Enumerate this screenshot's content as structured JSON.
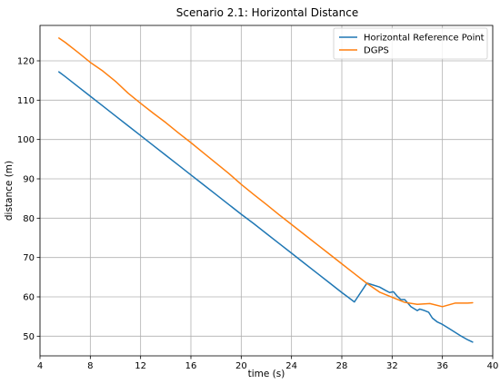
{
  "chart_data": {
    "type": "line",
    "title": "Scenario 2.1: Horizontal Distance",
    "xlabel": "time (s)",
    "ylabel": "distance (m)",
    "xlim": [
      4,
      40
    ],
    "ylim": [
      45,
      129
    ],
    "xticks": [
      4,
      8,
      12,
      16,
      20,
      24,
      28,
      32,
      36,
      40
    ],
    "yticks": [
      50,
      60,
      70,
      80,
      90,
      100,
      110,
      120
    ],
    "grid": true,
    "legend_position": "upper right",
    "series": [
      {
        "name": "Horizontal Reference Point",
        "color": "#1f77b4",
        "x": [
          5.5,
          6,
          7,
          8,
          9,
          10,
          11,
          12,
          13,
          14,
          15,
          16,
          17,
          18,
          19,
          20,
          21,
          22,
          23,
          24,
          25,
          26,
          27,
          28,
          29,
          30,
          30.5,
          31,
          31.5,
          31.8,
          32.1,
          32.4,
          32.7,
          33,
          33.5,
          34,
          34.2,
          34.5,
          34.9,
          35.2,
          35.6,
          36,
          36.5,
          37,
          37.5,
          38,
          38.4
        ],
        "y": [
          117.2,
          116.0,
          113.5,
          111.0,
          108.5,
          106.0,
          103.5,
          101.0,
          98.5,
          96.0,
          93.5,
          91.0,
          88.5,
          86.0,
          83.5,
          81.0,
          78.6,
          76.1,
          73.6,
          71.1,
          68.6,
          66.1,
          63.6,
          61.1,
          58.7,
          63.5,
          63.0,
          62.5,
          61.6,
          61.1,
          61.3,
          60.2,
          59.3,
          59.3,
          57.5,
          56.5,
          56.9,
          56.6,
          56.1,
          54.6,
          53.6,
          53.0,
          52.0,
          51.0,
          50.0,
          49.1,
          48.5
        ]
      },
      {
        "name": "DGPS",
        "color": "#ff7f0e",
        "x": [
          5.5,
          6,
          7,
          8,
          9,
          10,
          11,
          12,
          13,
          14,
          15,
          16,
          17,
          18,
          19,
          20,
          21,
          22,
          23,
          24,
          25,
          26,
          27,
          28,
          29,
          30,
          31,
          32,
          33,
          34,
          35,
          36,
          37,
          37.5,
          38,
          38.4
        ],
        "y": [
          125.8,
          124.7,
          122.2,
          119.6,
          117.4,
          114.8,
          111.8,
          109.2,
          106.7,
          104.3,
          101.7,
          99.2,
          96.6,
          94.0,
          91.4,
          88.6,
          86.0,
          83.5,
          80.9,
          78.4,
          75.9,
          73.4,
          70.9,
          68.4,
          65.9,
          63.4,
          61.2,
          59.9,
          58.6,
          58.1,
          58.3,
          57.5,
          58.4,
          58.4,
          58.4,
          58.5
        ]
      }
    ]
  }
}
